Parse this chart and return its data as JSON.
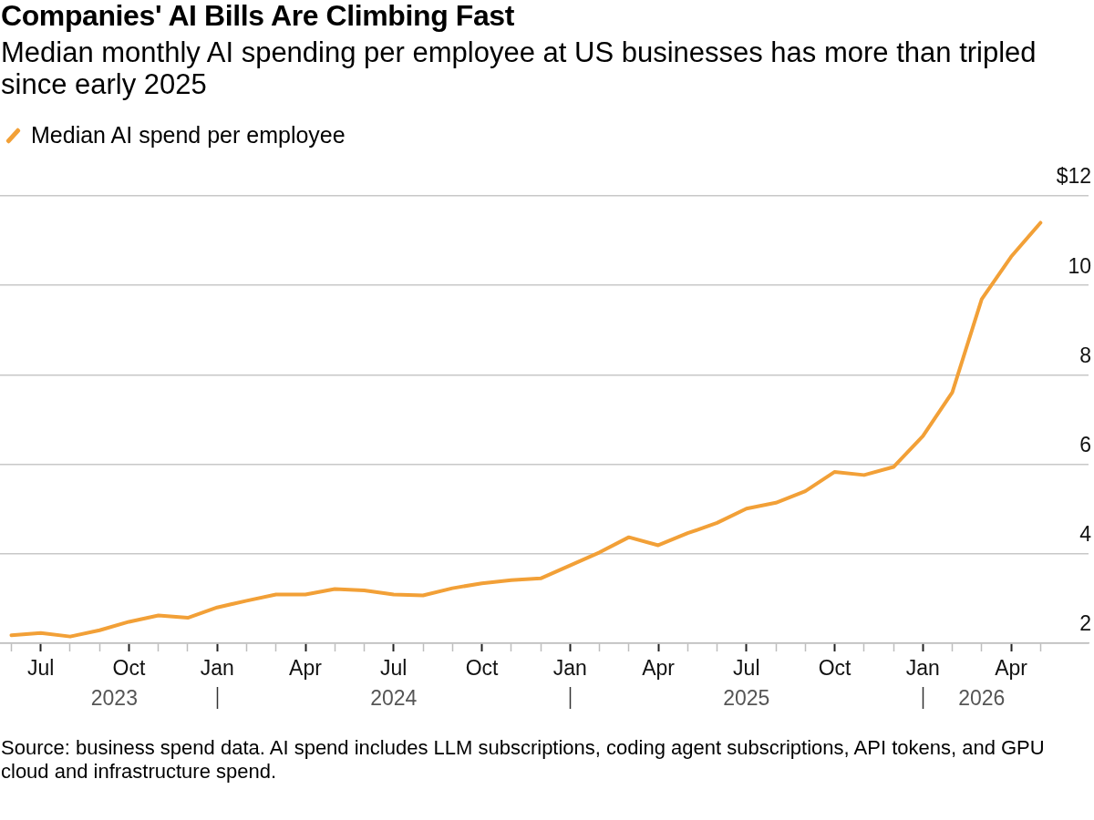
{
  "chart_data": {
    "type": "line",
    "title": "Companies' AI Bills Are Climbing Fast",
    "subtitle": "Median monthly AI spending per employee at US businesses has more than tripled since early 2025",
    "x": [
      "2023-06",
      "2023-07",
      "2023-08",
      "2023-09",
      "2023-10",
      "2023-11",
      "2023-12",
      "2024-01",
      "2024-02",
      "2024-03",
      "2024-04",
      "2024-05",
      "2024-06",
      "2024-07",
      "2024-08",
      "2024-09",
      "2024-10",
      "2024-11",
      "2024-12",
      "2025-01",
      "2025-02",
      "2025-03",
      "2025-04",
      "2025-05",
      "2025-06",
      "2025-07",
      "2025-08",
      "2025-09",
      "2025-10",
      "2025-11",
      "2025-12",
      "2026-01",
      "2026-02",
      "2026-03",
      "2026-04",
      "2026-05"
    ],
    "series": [
      {
        "name": "Median AI spend per employee",
        "color": "#f2a037",
        "values": [
          2.18,
          2.23,
          2.15,
          2.29,
          2.48,
          2.62,
          2.57,
          2.8,
          2.95,
          3.09,
          3.09,
          3.21,
          3.18,
          3.09,
          3.07,
          3.23,
          3.34,
          3.41,
          3.45,
          3.74,
          4.03,
          4.37,
          4.19,
          4.46,
          4.69,
          5.01,
          5.14,
          5.4,
          5.83,
          5.76,
          5.94,
          6.63,
          7.61,
          9.69,
          10.64,
          11.4
        ]
      }
    ],
    "xlim": [
      "2023-05-20",
      "2026-06-20"
    ],
    "xticks": [
      {
        "value": "2023-06",
        "label": null
      },
      {
        "value": "2023-07",
        "label": "Jul"
      },
      {
        "value": "2023-08",
        "label": null
      },
      {
        "value": "2023-09",
        "label": null
      },
      {
        "value": "2023-10",
        "label": "Oct"
      },
      {
        "value": "2023-11",
        "label": null
      },
      {
        "value": "2023-12",
        "label": null
      },
      {
        "value": "2024-01",
        "label": "Jan"
      },
      {
        "value": "2024-02",
        "label": null
      },
      {
        "value": "2024-03",
        "label": null
      },
      {
        "value": "2024-04",
        "label": "Apr"
      },
      {
        "value": "2024-05",
        "label": null
      },
      {
        "value": "2024-06",
        "label": null
      },
      {
        "value": "2024-07",
        "label": "Jul"
      },
      {
        "value": "2024-08",
        "label": null
      },
      {
        "value": "2024-09",
        "label": null
      },
      {
        "value": "2024-10",
        "label": "Oct"
      },
      {
        "value": "2024-11",
        "label": null
      },
      {
        "value": "2024-12",
        "label": null
      },
      {
        "value": "2025-01",
        "label": "Jan"
      },
      {
        "value": "2025-02",
        "label": null
      },
      {
        "value": "2025-03",
        "label": null
      },
      {
        "value": "2025-04",
        "label": "Apr"
      },
      {
        "value": "2025-05",
        "label": null
      },
      {
        "value": "2025-06",
        "label": null
      },
      {
        "value": "2025-07",
        "label": "Jul"
      },
      {
        "value": "2025-08",
        "label": null
      },
      {
        "value": "2025-09",
        "label": null
      },
      {
        "value": "2025-10",
        "label": "Oct"
      },
      {
        "value": "2025-11",
        "label": null
      },
      {
        "value": "2025-12",
        "label": null
      },
      {
        "value": "2026-01",
        "label": "Jan"
      },
      {
        "value": "2026-02",
        "label": null
      },
      {
        "value": "2026-03",
        "label": null
      },
      {
        "value": "2026-04",
        "label": "Apr"
      },
      {
        "value": "2026-05",
        "label": null
      }
    ],
    "x2lim": [
      "2023-05-20",
      "2026-06-20"
    ],
    "x2ticks": [
      {
        "value": "2023-09-16",
        "label": "2023"
      },
      {
        "value": "2024-01",
        "label": null
      },
      {
        "value": "2024-07",
        "label": "2024"
      },
      {
        "value": "2025-01",
        "label": null
      },
      {
        "value": "2025-07",
        "label": "2025"
      },
      {
        "value": "2026-01",
        "label": null
      },
      {
        "value": "2026-03",
        "label": "2026"
      }
    ],
    "ylim": [
      2,
      12
    ],
    "yticks": [
      2,
      4,
      6,
      8,
      10,
      {
        "value": 12,
        "label": "$12"
      }
    ],
    "grid": "y",
    "legend": "top left",
    "line_style": "solid",
    "annotations": [
      "Source: business spend data. AI spend includes LLM subscriptions, coding agent subscriptions, API tokens, and GPU cloud and infrastructure spend."
    ]
  }
}
